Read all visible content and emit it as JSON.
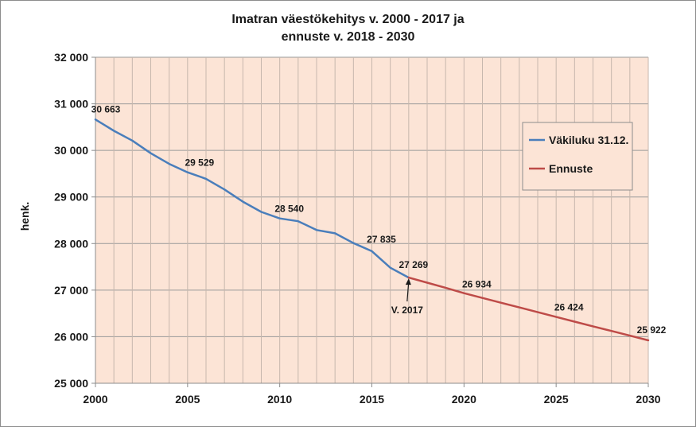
{
  "chart_data": {
    "type": "line",
    "title_lines": [
      "Imatran väestökehitys v. 2000 - 2017 ja",
      "ennuste v. 2018 - 2030"
    ],
    "xlabel": "",
    "ylabel": "henk.",
    "xlim": [
      2000,
      2030
    ],
    "ylim": [
      25000,
      32000
    ],
    "x_ticks": [
      "2000",
      "2005",
      "2010",
      "2015",
      "2020",
      "2025",
      "2030"
    ],
    "y_ticks": [
      "25 000",
      "26 000",
      "27 000",
      "28 000",
      "29 000",
      "30 000",
      "31 000",
      "32 000"
    ],
    "grid": true,
    "plot_background": "#fce4d6",
    "legend_position": "right",
    "series": [
      {
        "name": "Väkiluku 31.12.",
        "color": "#4a7ebb",
        "x": [
          2000,
          2001,
          2002,
          2003,
          2004,
          2005,
          2006,
          2007,
          2008,
          2009,
          2010,
          2011,
          2012,
          2013,
          2014,
          2015,
          2016,
          2017
        ],
        "values": [
          30663,
          30420,
          30210,
          29940,
          29710,
          29529,
          29390,
          29160,
          28900,
          28680,
          28540,
          28480,
          28290,
          28220,
          28010,
          27835,
          27480,
          27269
        ]
      },
      {
        "name": "Ennuste",
        "color": "#be4b48",
        "x": [
          2017,
          2018,
          2019,
          2020,
          2021,
          2022,
          2023,
          2024,
          2025,
          2026,
          2027,
          2028,
          2029,
          2030
        ],
        "values": [
          27269,
          27160,
          27050,
          26934,
          26832,
          26730,
          26628,
          26526,
          26424,
          26324,
          26223,
          26123,
          26022,
          25922
        ]
      }
    ],
    "data_labels": [
      {
        "x": 2000,
        "y": 30663,
        "text": "30 663"
      },
      {
        "x": 2005,
        "y": 29529,
        "text": "29 529"
      },
      {
        "x": 2010,
        "y": 28540,
        "text": "28 540"
      },
      {
        "x": 2015,
        "y": 27835,
        "text": "27 835"
      },
      {
        "x": 2017,
        "y": 27269,
        "text": "27 269"
      },
      {
        "x": 2020,
        "y": 26934,
        "text": "26 934"
      },
      {
        "x": 2025,
        "y": 26424,
        "text": "26 424"
      },
      {
        "x": 2030,
        "y": 25922,
        "text": "25 922"
      }
    ],
    "annotations": [
      {
        "x": 2017,
        "y": 27269,
        "text": "V. 2017"
      }
    ]
  }
}
